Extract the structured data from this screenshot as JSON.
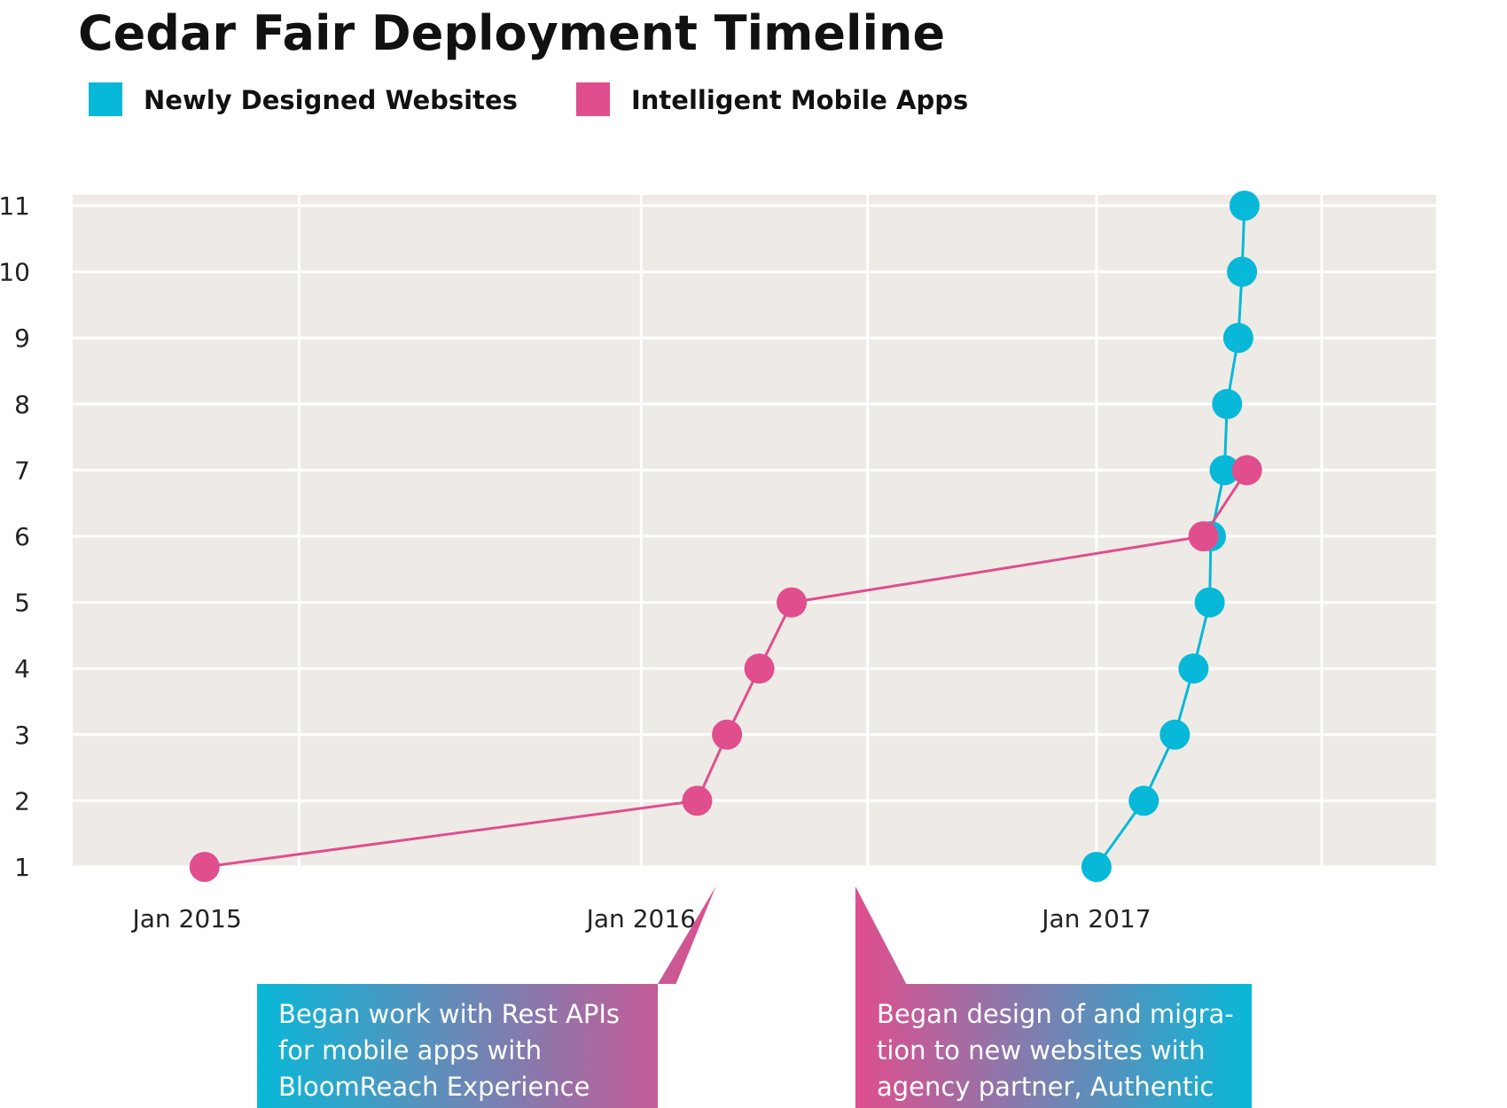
{
  "chart_data": {
    "type": "line",
    "title": "Cedar Fair Deployment Timeline",
    "xlabel": "",
    "ylabel": "",
    "x_axis": {
      "type": "date",
      "range": [
        "2014-10-01",
        "2017-10-01"
      ],
      "tick_labels": [
        "Jan 2015",
        "Jan 2016",
        "Jan 2017"
      ],
      "tick_dates": [
        "2015-01-01",
        "2016-01-01",
        "2017-01-01"
      ],
      "gridline_dates": [
        "2015-04-01",
        "2016-01-01",
        "2016-07-01",
        "2017-01-01",
        "2017-07-01"
      ]
    },
    "y_axis": {
      "range": [
        1,
        11
      ],
      "ticks": [
        1,
        2,
        3,
        4,
        5,
        6,
        7,
        8,
        9,
        10,
        11
      ]
    },
    "grid": true,
    "legend_position": "top-left",
    "series": [
      {
        "name": "Newly Designed Websites",
        "color": "#08b8d8",
        "points": [
          {
            "x": "2017-01-01",
            "y": 1
          },
          {
            "x": "2017-02-08",
            "y": 2
          },
          {
            "x": "2017-03-05",
            "y": 3
          },
          {
            "x": "2017-03-20",
            "y": 4
          },
          {
            "x": "2017-04-02",
            "y": 5
          },
          {
            "x": "2017-04-03",
            "y": 6
          },
          {
            "x": "2017-04-14",
            "y": 7
          },
          {
            "x": "2017-04-16",
            "y": 8
          },
          {
            "x": "2017-04-25",
            "y": 9
          },
          {
            "x": "2017-04-28",
            "y": 10
          },
          {
            "x": "2017-04-30",
            "y": 11
          }
        ]
      },
      {
        "name": "Intelligent Mobile Apps",
        "color": "#e04e8e",
        "points": [
          {
            "x": "2015-01-15",
            "y": 1
          },
          {
            "x": "2016-02-15",
            "y": 2
          },
          {
            "x": "2016-03-10",
            "y": 3
          },
          {
            "x": "2016-04-05",
            "y": 4
          },
          {
            "x": "2016-05-01",
            "y": 5
          },
          {
            "x": "2017-03-28",
            "y": 6
          },
          {
            "x": "2017-05-02",
            "y": 7
          }
        ]
      }
    ],
    "annotations": [
      {
        "lines": [
          "Began work with Rest APIs",
          "for mobile apps with",
          "BloomReach Experience"
        ],
        "pointer_date": "2016-03-01",
        "gradient_from": "#08b8d8",
        "gradient_to": "#e04e8e"
      },
      {
        "lines": [
          "Began design of and migra-",
          "tion to new websites with",
          "agency partner, Authentic"
        ],
        "pointer_date": "2016-06-30",
        "gradient_from": "#e04e8e",
        "gradient_to": "#08b8d8"
      }
    ]
  }
}
